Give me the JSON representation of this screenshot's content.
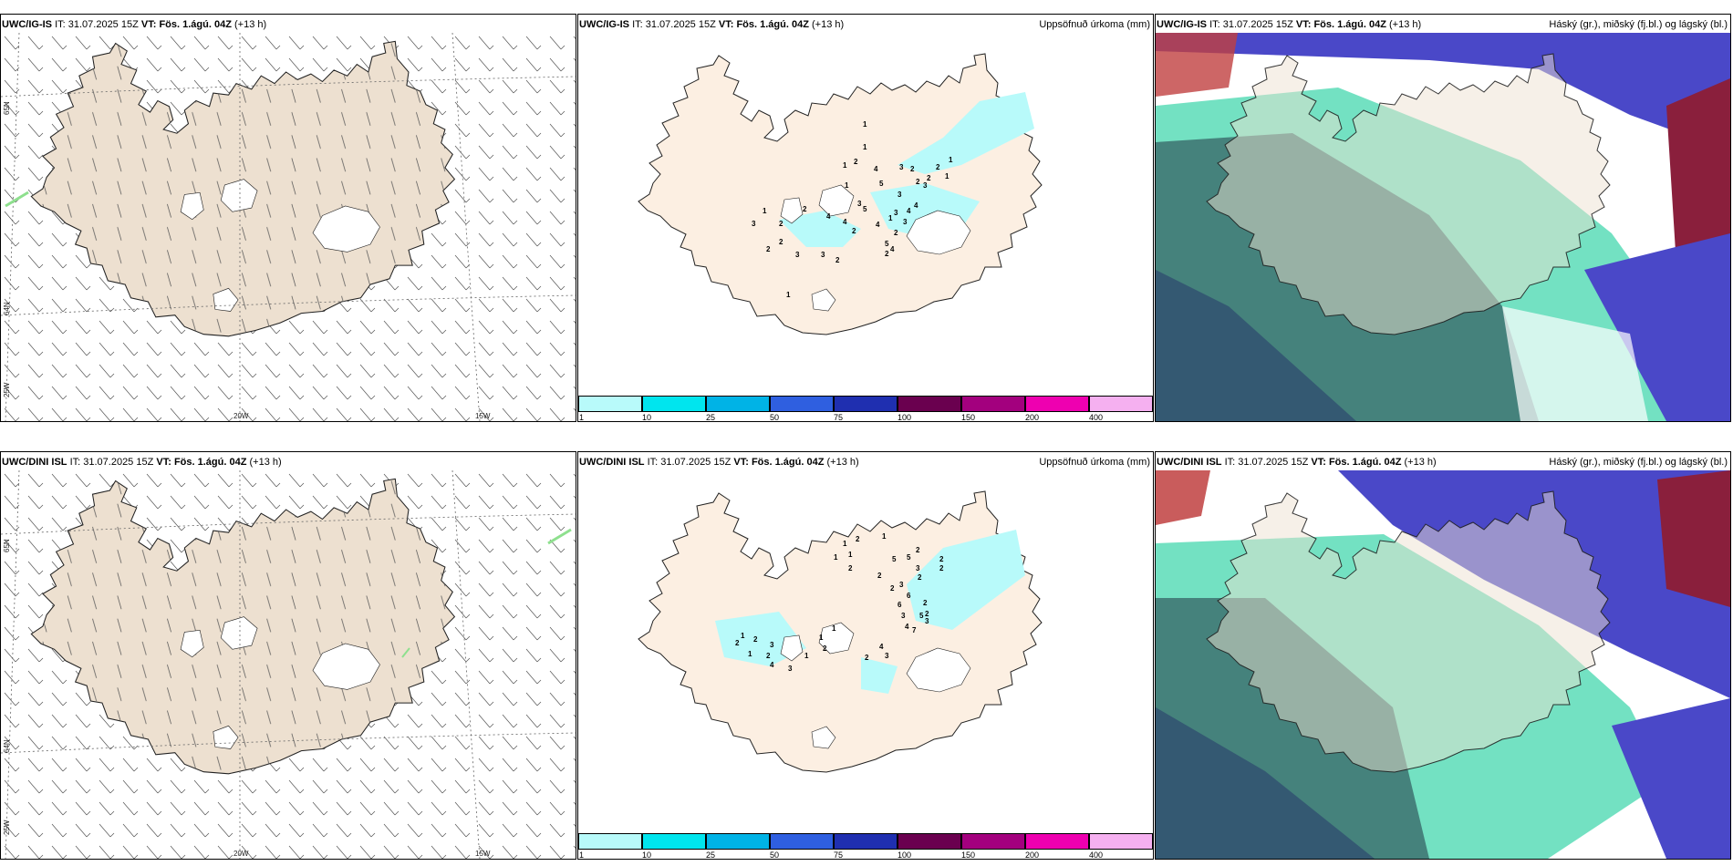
{
  "panels": [
    {
      "id": "p1",
      "model": "UWC/IG-IS",
      "it_prefix": "IT:",
      "it": "31.07.2025 15Z",
      "vt_prefix": "VT:",
      "vt": "Fös. 1.ágú. 04Z",
      "lead": "(+13 h)",
      "right_title": "",
      "type": "wind"
    },
    {
      "id": "p2",
      "model": "UWC/IG-IS",
      "it_prefix": "IT:",
      "it": "31.07.2025 15Z",
      "vt_prefix": "VT:",
      "vt": "Fös. 1.ágú. 04Z",
      "lead": "(+13 h)",
      "right_title": "Uppsöfnuð úrkoma (mm)",
      "type": "precip"
    },
    {
      "id": "p3",
      "model": "UWC/IG-IS",
      "it_prefix": "IT:",
      "it": "31.07.2025 15Z",
      "vt_prefix": "VT:",
      "vt": "Fös. 1.ágú. 04Z",
      "lead": "(+13 h)",
      "right_title": "Háský (gr.), miðský (fj.bl.) og lágský (bl.)",
      "type": "clouds"
    },
    {
      "id": "p4",
      "model": "UWC/DINI ISL",
      "it_prefix": "IT:",
      "it": "31.07.2025 15Z",
      "vt_prefix": "VT:",
      "vt": "Fös. 1.ágú. 04Z",
      "lead": "(+13 h)",
      "right_title": "",
      "type": "wind"
    },
    {
      "id": "p5",
      "model": "UWC/DINI ISL",
      "it_prefix": "IT:",
      "it": "31.07.2025 15Z",
      "vt_prefix": "VT:",
      "vt": "Fös. 1.ágú. 04Z",
      "lead": "(+13 h)",
      "right_title": "Uppsöfnuð úrkoma (mm)",
      "type": "precip"
    },
    {
      "id": "p6",
      "model": "UWC/DINI ISL",
      "it_prefix": "IT:",
      "it": "31.07.2025 15Z",
      "vt_prefix": "VT:",
      "vt": "Fös. 1.ágú. 04Z",
      "lead": "(+13 h)",
      "right_title": "Háský (gr.), miðský (fj.bl.) og lágský (bl.)",
      "type": "clouds"
    }
  ],
  "grid_labels": {
    "lat_65": "65N",
    "lat_64": "64N",
    "lon_25": "25W",
    "lon_20": "20W",
    "lon_15": "15W"
  },
  "colorbar": {
    "ticks": [
      "1",
      "10",
      "25",
      "50",
      "75",
      "100",
      "150",
      "200",
      "400"
    ],
    "colors": [
      "#b8fafa",
      "#00e5ee",
      "#00b3e6",
      "#2f5fe0",
      "#1f2fb0",
      "#6a004f",
      "#a3007e",
      "#ee00b0",
      "#f5b0f0"
    ]
  },
  "colors": {
    "land": "#ede0d0",
    "land_precip": "#fcefe2",
    "ice": "#ffffff",
    "precip_light": "#b8fafa",
    "sea_dark": "#3a6a6a",
    "green": "#00c890",
    "cloud_blue": "#4a48c8",
    "cloud_red": "#8a1f3c"
  },
  "precip_labels_top": [
    "1",
    "1",
    "2",
    "1",
    "1",
    "1",
    "3",
    "4",
    "5",
    "5",
    "4",
    "3",
    "4",
    "2",
    "4",
    "1",
    "2",
    "2",
    "5",
    "4",
    "3",
    "3",
    "4",
    "4",
    "3",
    "2",
    "2",
    "1",
    "2",
    "2",
    "3",
    "3",
    "2",
    "3",
    "2",
    "2",
    "3",
    "1",
    "2",
    "2",
    "1"
  ],
  "precip_labels_bottom": [
    "1",
    "2",
    "1",
    "1",
    "1",
    "2",
    "5",
    "5",
    "3",
    "2",
    "3",
    "6",
    "2",
    "6",
    "3",
    "5",
    "4",
    "7",
    "3",
    "2",
    "2",
    "2",
    "2",
    "2",
    "2",
    "4",
    "3",
    "2",
    "1",
    "1",
    "2",
    "1",
    "3",
    "3",
    "2",
    "4",
    "1",
    "1",
    "2",
    "2"
  ]
}
